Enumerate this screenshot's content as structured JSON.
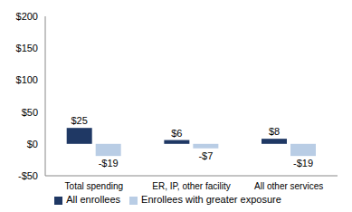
{
  "chart_data": {
    "type": "bar",
    "categories": [
      "Total spending",
      "ER, IP, other facility",
      "All other services"
    ],
    "series": [
      {
        "name": "All enrollees",
        "color": "#1f3864",
        "values": [
          25,
          6,
          8
        ],
        "value_labels": [
          "$25",
          "$6",
          "$8"
        ]
      },
      {
        "name": "Enrollees with greater exposure",
        "color": "#b9cde5",
        "values": [
          -19,
          -7,
          -19
        ],
        "value_labels": [
          "-$19",
          "-$7",
          "-$19"
        ]
      }
    ],
    "ylim": [
      -50,
      200
    ],
    "yticks": [
      {
        "value": -50,
        "label": "-$50"
      },
      {
        "value": 0,
        "label": "$0"
      },
      {
        "value": 50,
        "label": "$50"
      },
      {
        "value": 100,
        "label": "$100"
      },
      {
        "value": 150,
        "label": "$150"
      },
      {
        "value": 200,
        "label": "$200"
      }
    ],
    "grid": false,
    "legend": "bottom",
    "data_labels": true
  }
}
